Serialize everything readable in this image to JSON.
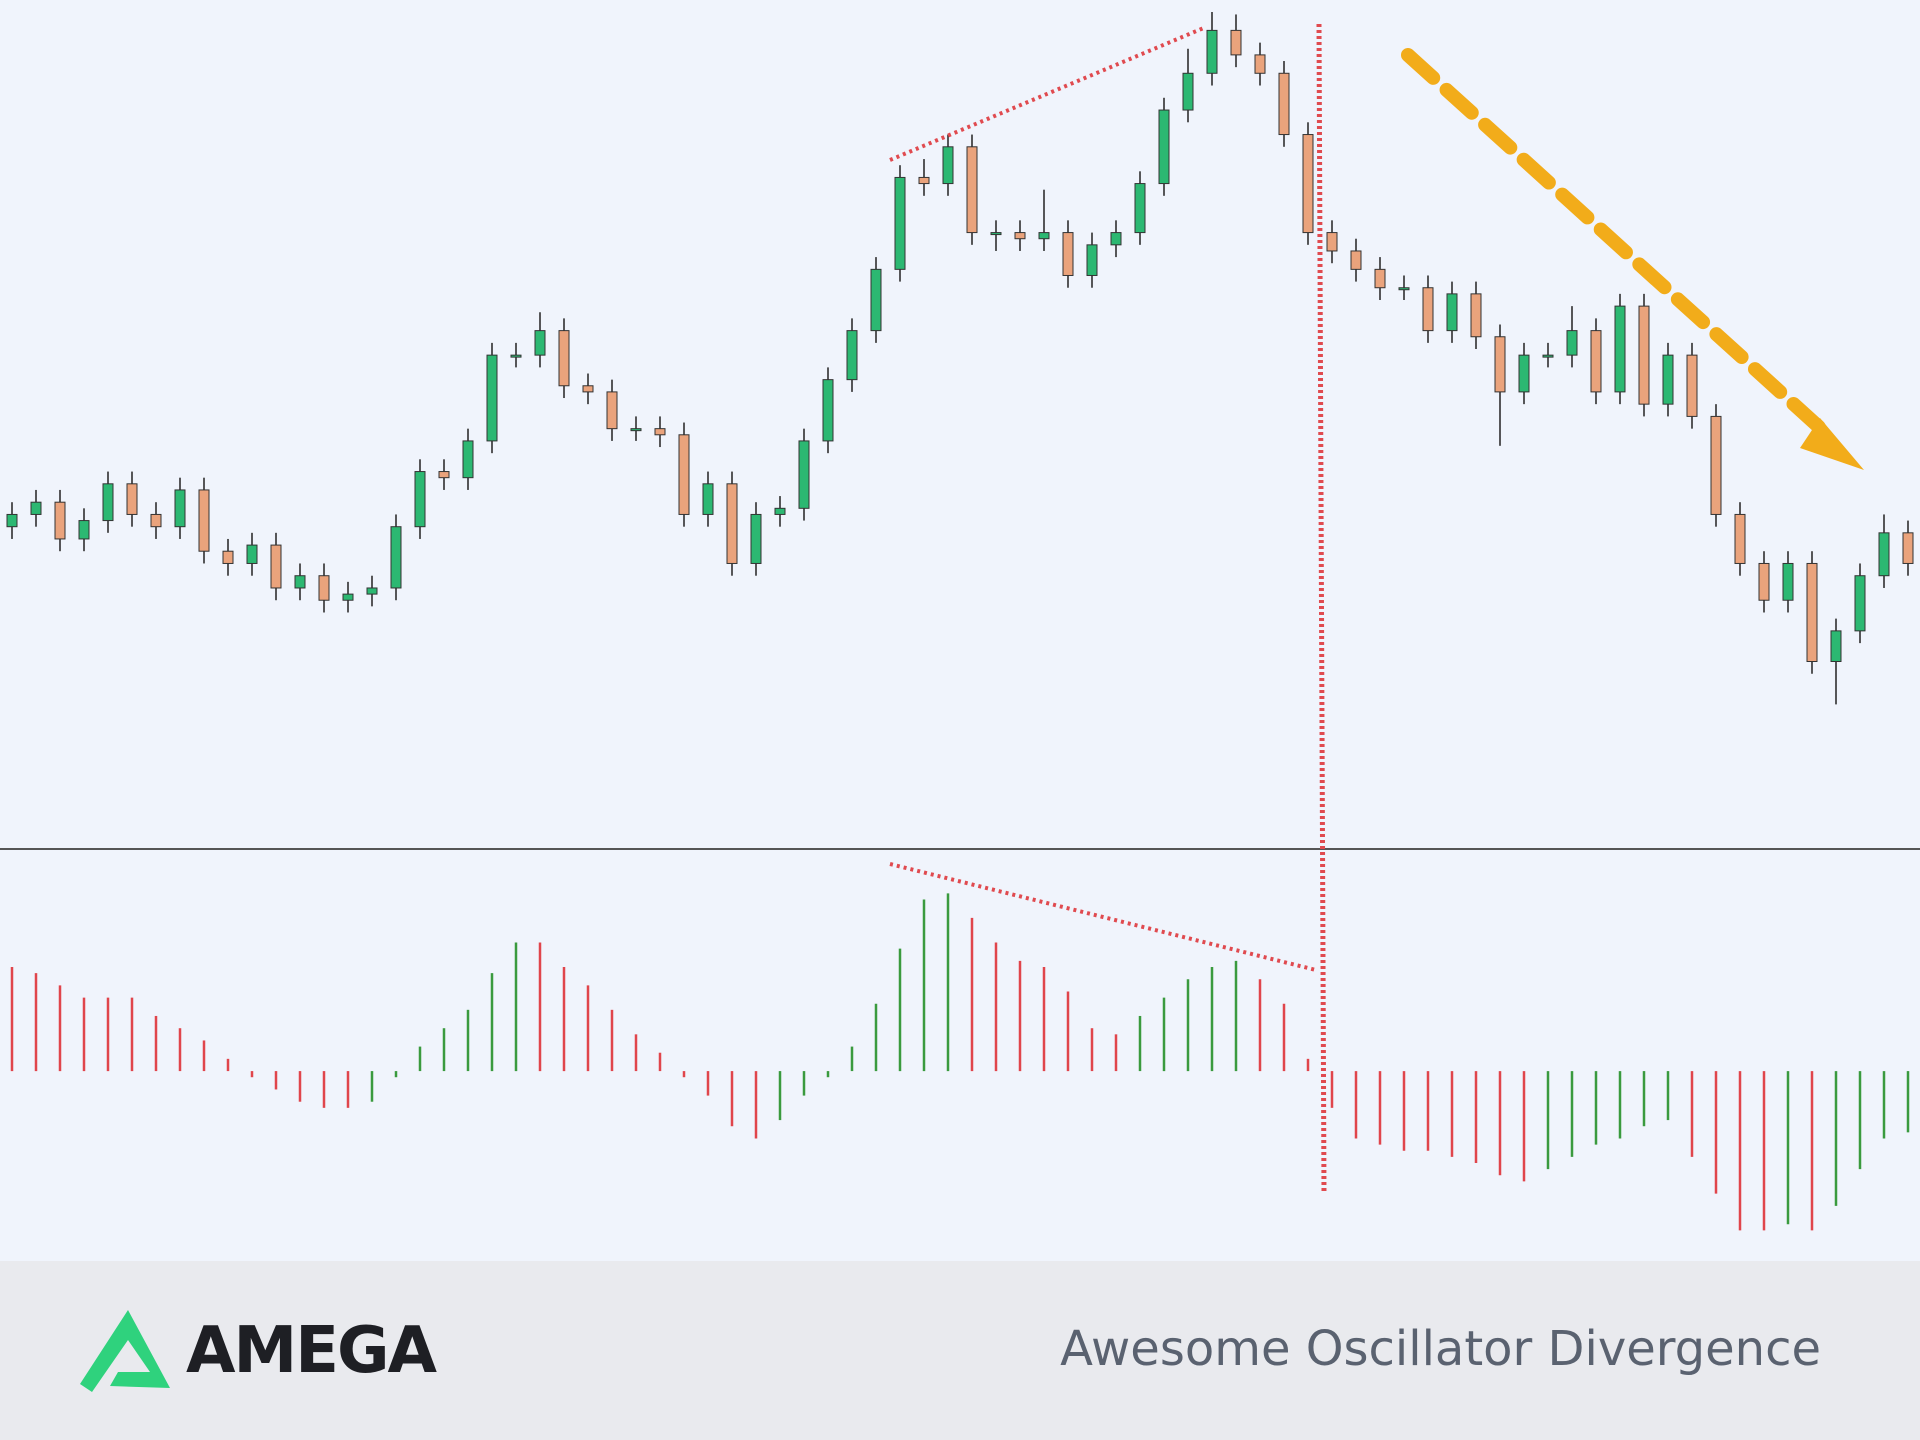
{
  "chart_data": [
    {
      "type": "candlestick",
      "up_color": "#2cb872",
      "down_color": "#eaa37c",
      "ylim": [
        7,
        690
      ],
      "open": [
        270,
        280,
        290,
        260,
        275,
        305,
        280,
        270,
        300,
        250,
        240,
        255,
        220,
        230,
        210,
        215,
        220,
        270,
        315,
        310,
        340,
        410,
        410,
        430,
        385,
        380,
        350,
        350,
        345,
        280,
        305,
        240,
        280,
        285,
        340,
        390,
        430,
        480,
        555,
        550,
        580,
        510,
        510,
        505,
        510,
        475,
        500,
        510,
        550,
        610,
        640,
        675,
        655,
        640,
        590,
        510,
        495,
        480,
        465,
        465,
        430,
        460,
        425,
        380,
        410,
        410,
        430,
        380,
        450,
        370,
        410,
        360,
        280,
        240,
        210,
        240,
        160,
        185,
        230,
        265
      ],
      "high": [
        290,
        300,
        300,
        285,
        315,
        315,
        290,
        310,
        310,
        260,
        265,
        265,
        240,
        240,
        225,
        230,
        280,
        325,
        325,
        350,
        420,
        420,
        445,
        440,
        395,
        390,
        360,
        360,
        355,
        315,
        315,
        290,
        295,
        350,
        400,
        440,
        490,
        565,
        570,
        590,
        590,
        520,
        520,
        545,
        520,
        510,
        520,
        560,
        620,
        660,
        690,
        688,
        665,
        650,
        600,
        520,
        505,
        490,
        475,
        475,
        470,
        470,
        435,
        420,
        420,
        450,
        440,
        460,
        460,
        420,
        420,
        370,
        290,
        250,
        250,
        250,
        195,
        240,
        280,
        275
      ],
      "low": [
        260,
        270,
        250,
        250,
        265,
        270,
        260,
        260,
        240,
        230,
        230,
        210,
        210,
        200,
        200,
        205,
        210,
        260,
        300,
        300,
        330,
        400,
        400,
        375,
        370,
        340,
        340,
        335,
        270,
        270,
        230,
        230,
        270,
        275,
        330,
        380,
        420,
        470,
        540,
        540,
        500,
        495,
        495,
        495,
        465,
        465,
        490,
        500,
        540,
        600,
        630,
        645,
        630,
        580,
        500,
        485,
        470,
        455,
        455,
        420,
        420,
        415,
        336,
        370,
        400,
        400,
        370,
        370,
        360,
        360,
        350,
        270,
        230,
        200,
        200,
        150,
        125,
        175,
        220,
        230
      ],
      "close": [
        280,
        290,
        260,
        275,
        305,
        280,
        270,
        300,
        250,
        240,
        255,
        220,
        230,
        210,
        215,
        220,
        270,
        315,
        310,
        340,
        410,
        410,
        430,
        385,
        380,
        350,
        350,
        345,
        280,
        305,
        240,
        280,
        285,
        340,
        390,
        430,
        480,
        555,
        550,
        580,
        510,
        510,
        505,
        510,
        475,
        500,
        510,
        550,
        610,
        640,
        675,
        655,
        640,
        590,
        510,
        495,
        480,
        465,
        465,
        430,
        460,
        425,
        380,
        410,
        410,
        430,
        380,
        450,
        370,
        410,
        360,
        280,
        240,
        210,
        240,
        160,
        185,
        230,
        265,
        240
      ]
    },
    {
      "type": "bar",
      "up_color": "#3a9a3e",
      "down_color": "#e0454b",
      "ylim": [
        -155,
        178
      ],
      "values": [
        85,
        80,
        70,
        60,
        60,
        60,
        45,
        35,
        25,
        10,
        -5,
        -15,
        -25,
        -30,
        -30,
        -25,
        -5,
        20,
        35,
        50,
        80,
        105,
        105,
        85,
        70,
        50,
        30,
        15,
        -5,
        -20,
        -45,
        -55,
        -40,
        -20,
        -5,
        20,
        55,
        100,
        140,
        145,
        125,
        105,
        90,
        85,
        65,
        35,
        30,
        45,
        60,
        75,
        85,
        90,
        75,
        55,
        10,
        -30,
        -55,
        -60,
        -65,
        -65,
        -70,
        -75,
        -85,
        -90,
        -80,
        -70,
        -60,
        -55,
        -45,
        -40,
        -70,
        -100,
        -130,
        -130,
        -125,
        -130,
        -110,
        -80,
        -55,
        -50
      ]
    }
  ],
  "footer": {
    "brand": "AMEGA",
    "title": "Awesome Oscillator Divergence"
  }
}
